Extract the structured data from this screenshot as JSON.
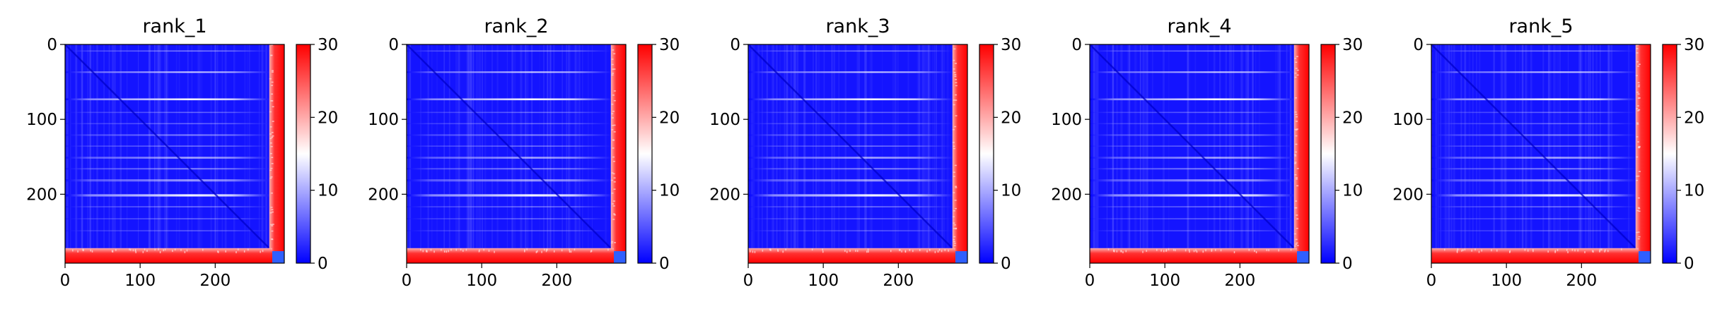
{
  "chart_data": {
    "type": "heatmap",
    "colormap": [
      "#0000ff",
      "#ffffff",
      "#ff0000"
    ],
    "colorbar": {
      "min": 0,
      "max": 30,
      "ticks": [
        "0",
        "10",
        "20",
        "30"
      ]
    },
    "axis": {
      "x_range": [
        0,
        292
      ],
      "y_range": [
        0,
        292
      ],
      "x_ticks": [
        "0",
        "100",
        "200"
      ],
      "y_ticks": [
        "0",
        "100",
        "200"
      ]
    },
    "panels": [
      {
        "title": "rank_1"
      },
      {
        "title": "rank_2"
      },
      {
        "title": "rank_3"
      },
      {
        "title": "rank_4"
      },
      {
        "title": "rank_5"
      }
    ]
  }
}
